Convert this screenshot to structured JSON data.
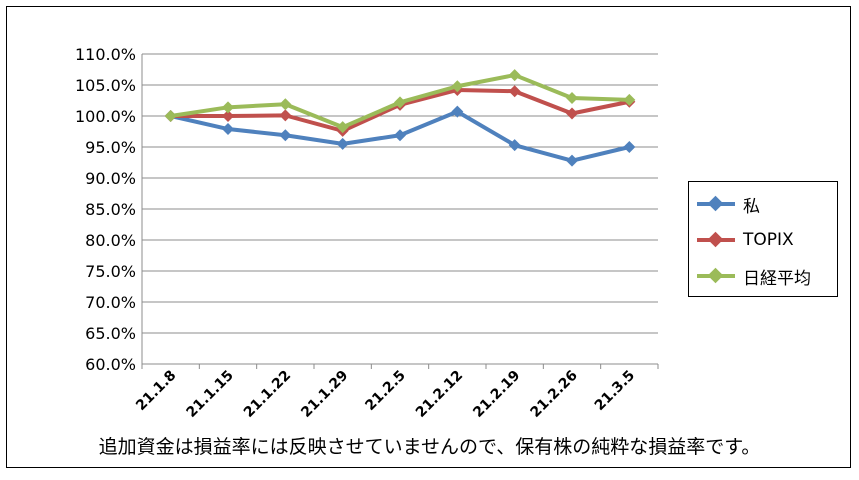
{
  "chart_data": {
    "type": "line",
    "title": "",
    "xlabel": "",
    "ylabel": "",
    "categories": [
      "21.1.8",
      "21.1.15",
      "21.1.22",
      "21.1.29",
      "21.2.5",
      "21.2.12",
      "21.2.19",
      "21.2.26",
      "21.3.5"
    ],
    "ylim": [
      60,
      110
    ],
    "ytick_step": 5,
    "ytick_labels": [
      "60.0%",
      "65.0%",
      "70.0%",
      "75.0%",
      "80.0%",
      "85.0%",
      "90.0%",
      "95.0%",
      "100.0%",
      "105.0%",
      "110.0%"
    ],
    "grid": "horizontal",
    "legend_position": "right",
    "series": [
      {
        "name": "私",
        "color": "#4f81bd",
        "values": [
          100.0,
          97.9,
          96.9,
          95.5,
          96.9,
          100.7,
          95.3,
          92.8,
          95.0
        ]
      },
      {
        "name": "TOPIX",
        "color": "#c0504d",
        "values": [
          100.0,
          100.0,
          100.1,
          97.6,
          101.8,
          104.2,
          104.0,
          100.4,
          102.3
        ]
      },
      {
        "name": "日経平均",
        "color": "#9bbb59",
        "values": [
          100.0,
          101.4,
          101.9,
          98.2,
          102.2,
          104.8,
          106.6,
          102.9,
          102.6
        ]
      }
    ]
  },
  "note": "追加資金は損益率には反映させていませんので、保有株の純粋な損益率です。"
}
